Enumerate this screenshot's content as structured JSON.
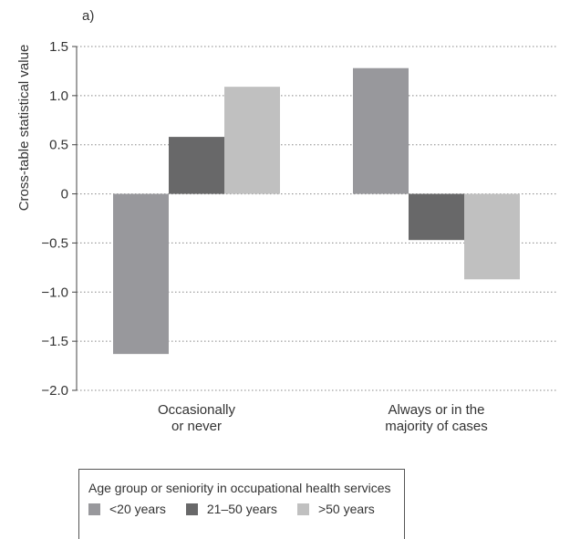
{
  "chart_data": {
    "type": "bar",
    "panel_label": "a)",
    "ylabel": "Cross-table statistical value",
    "ylim": [
      -2.0,
      1.5
    ],
    "yticks": [
      1.5,
      1.0,
      0.5,
      0,
      -0.5,
      -1.0,
      -1.5,
      -2.0
    ],
    "ytick_labels": [
      "1.5",
      "1.0",
      "0.5",
      "0",
      "−0.5",
      "−1.0",
      "−1.5",
      "−2.0"
    ],
    "grid": "horizontal dotted",
    "categories": [
      [
        "Occasionally",
        "or never"
      ],
      [
        "Always or in the",
        "majority of cases"
      ]
    ],
    "series": [
      {
        "name": "<20 years",
        "color": "#98989c",
        "values": [
          -1.63,
          1.28
        ]
      },
      {
        "name": "21–50 years",
        "color": "#686869",
        "values": [
          0.58,
          -0.47
        ]
      },
      {
        "name": ">50 years",
        "color": "#c0c0c0",
        "values": [
          1.09,
          -0.87
        ]
      }
    ],
    "legend": {
      "title": "Age group or seniority in occupational health services",
      "position": "bottom-left"
    }
  }
}
